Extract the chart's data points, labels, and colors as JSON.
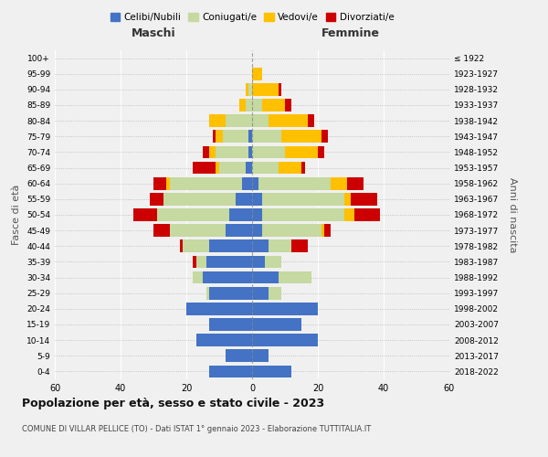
{
  "age_groups": [
    "0-4",
    "5-9",
    "10-14",
    "15-19",
    "20-24",
    "25-29",
    "30-34",
    "35-39",
    "40-44",
    "45-49",
    "50-54",
    "55-59",
    "60-64",
    "65-69",
    "70-74",
    "75-79",
    "80-84",
    "85-89",
    "90-94",
    "95-99",
    "100+"
  ],
  "birth_years": [
    "2018-2022",
    "2013-2017",
    "2008-2012",
    "2003-2007",
    "1998-2002",
    "1993-1997",
    "1988-1992",
    "1983-1987",
    "1978-1982",
    "1973-1977",
    "1968-1972",
    "1963-1967",
    "1958-1962",
    "1953-1957",
    "1948-1952",
    "1943-1947",
    "1938-1942",
    "1933-1937",
    "1928-1932",
    "1923-1927",
    "≤ 1922"
  ],
  "maschi": {
    "celibi": [
      13,
      8,
      17,
      13,
      20,
      13,
      15,
      14,
      13,
      8,
      7,
      5,
      3,
      2,
      1,
      1,
      0,
      0,
      0,
      0,
      0
    ],
    "coniugati": [
      0,
      0,
      0,
      0,
      0,
      1,
      3,
      3,
      8,
      17,
      22,
      22,
      22,
      8,
      10,
      8,
      8,
      2,
      1,
      0,
      0
    ],
    "vedovi": [
      0,
      0,
      0,
      0,
      0,
      0,
      0,
      0,
      0,
      0,
      0,
      0,
      1,
      1,
      2,
      2,
      5,
      2,
      1,
      0,
      0
    ],
    "divorziati": [
      0,
      0,
      0,
      0,
      0,
      0,
      0,
      1,
      1,
      5,
      7,
      4,
      4,
      7,
      2,
      1,
      0,
      0,
      0,
      0,
      0
    ]
  },
  "femmine": {
    "nubili": [
      12,
      5,
      20,
      15,
      20,
      5,
      8,
      4,
      5,
      3,
      3,
      3,
      2,
      0,
      0,
      0,
      0,
      0,
      0,
      0,
      0
    ],
    "coniugate": [
      0,
      0,
      0,
      0,
      0,
      4,
      10,
      5,
      7,
      18,
      25,
      25,
      22,
      8,
      10,
      9,
      5,
      3,
      0,
      0,
      0
    ],
    "vedove": [
      0,
      0,
      0,
      0,
      0,
      0,
      0,
      0,
      0,
      1,
      3,
      2,
      5,
      7,
      10,
      12,
      12,
      7,
      8,
      3,
      0
    ],
    "divorziate": [
      0,
      0,
      0,
      0,
      0,
      0,
      0,
      0,
      5,
      2,
      8,
      8,
      5,
      1,
      2,
      2,
      2,
      2,
      1,
      0,
      0
    ]
  },
  "colors": {
    "celibi": "#4472c4",
    "coniugati": "#c5d9a0",
    "vedovi": "#ffc000",
    "divorziati": "#cc0000"
  },
  "xlim": 60,
  "title": "Popolazione per età, sesso e stato civile - 2023",
  "subtitle": "COMUNE DI VILLAR PELLICE (TO) - Dati ISTAT 1° gennaio 2023 - Elaborazione TUTTITALIA.IT",
  "xlabel_left": "Maschi",
  "xlabel_right": "Femmine",
  "ylabel_left": "Fasce di età",
  "ylabel_right": "Anni di nascita",
  "bg_color": "#f0f0f0",
  "legend_labels": [
    "Celibi/Nubili",
    "Coniugati/e",
    "Vedovi/e",
    "Divorziati/e"
  ]
}
